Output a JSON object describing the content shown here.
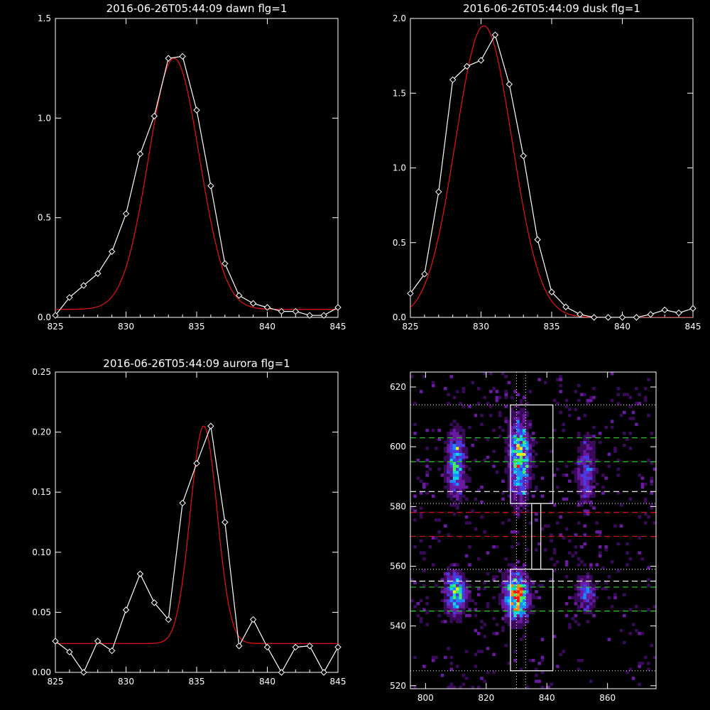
{
  "chart_data": [
    {
      "type": "line",
      "title": "2016-06-26T05:44:09 dawn flg=1",
      "xlim": [
        825,
        845
      ],
      "ylim": [
        0,
        1.5
      ],
      "xticks": [
        "825",
        "830",
        "835",
        "840",
        "845"
      ],
      "yticks": [
        "0.0",
        "0.5",
        "1.0",
        "1.5"
      ],
      "series": [
        {
          "x": [
            825,
            826,
            827,
            828,
            829,
            830,
            831,
            832,
            833,
            834,
            835,
            836,
            837,
            838,
            839,
            840,
            841,
            842,
            843,
            844,
            845
          ],
          "values": [
            0.01,
            0.1,
            0.16,
            0.22,
            0.33,
            0.52,
            0.82,
            1.01,
            1.3,
            1.31,
            1.04,
            0.66,
            0.27,
            0.11,
            0.07,
            0.05,
            0.03,
            0.03,
            0.01,
            0.01,
            0.05
          ],
          "color": "#ffffff",
          "marker": "diamond"
        },
        {
          "fit": "gaussian",
          "amplitude": 1.26,
          "center": 833.4,
          "sigma": 1.8,
          "baseline": 0.04,
          "color": "#dd1111"
        }
      ]
    },
    {
      "type": "line",
      "title": "2016-06-26T05:44:09 dusk flg=1",
      "xlim": [
        825,
        845
      ],
      "ylim": [
        0,
        2.0
      ],
      "xticks": [
        "825",
        "830",
        "835",
        "840",
        "845"
      ],
      "yticks": [
        "0.0",
        "0.5",
        "1.0",
        "1.5",
        "2.0"
      ],
      "series": [
        {
          "x": [
            825,
            826,
            827,
            828,
            829,
            830,
            831,
            832,
            833,
            834,
            835,
            836,
            837,
            838,
            839,
            840,
            841,
            842,
            843,
            844,
            845
          ],
          "values": [
            0.16,
            0.29,
            0.84,
            1.59,
            1.68,
            1.72,
            1.89,
            1.56,
            1.08,
            0.52,
            0.17,
            0.07,
            0.02,
            0.0,
            0.0,
            0.0,
            0.0,
            0.02,
            0.05,
            0.03,
            0.06
          ],
          "color": "#ffffff",
          "marker": "diamond"
        },
        {
          "fit": "gaussian",
          "amplitude": 1.95,
          "center": 830.2,
          "sigma": 2.0,
          "baseline": 0.0,
          "color": "#dd1111"
        }
      ]
    },
    {
      "type": "line",
      "title": "2016-06-26T05:44:09 aurora flg=1",
      "xlim": [
        825,
        845
      ],
      "ylim": [
        0,
        0.25
      ],
      "xticks": [
        "825",
        "830",
        "835",
        "840",
        "845"
      ],
      "yticks": [
        "0.00",
        "0.05",
        "0.10",
        "0.15",
        "0.20",
        "0.25"
      ],
      "series": [
        {
          "x": [
            825,
            826,
            827,
            828,
            829,
            830,
            831,
            832,
            833,
            834,
            835,
            836,
            837,
            838,
            839,
            840,
            841,
            842,
            843,
            844,
            845
          ],
          "values": [
            0.026,
            0.017,
            0.0,
            0.026,
            0.018,
            0.052,
            0.082,
            0.058,
            0.044,
            0.141,
            0.174,
            0.205,
            0.125,
            0.022,
            0.044,
            0.021,
            0.0,
            0.021,
            0.022,
            0.0,
            0.021
          ],
          "color": "#ffffff",
          "marker": "diamond"
        },
        {
          "fit": "gaussian",
          "amplitude": 0.181,
          "center": 835.5,
          "sigma": 0.95,
          "baseline": 0.024,
          "color": "#dd1111"
        }
      ]
    },
    {
      "type": "heatmap",
      "xlim": [
        795,
        876
      ],
      "ylim": [
        519,
        625
      ],
      "xticks": [
        "800",
        "820",
        "840",
        "860"
      ],
      "yticks": [
        "520",
        "540",
        "560",
        "580",
        "600",
        "620"
      ],
      "clusters": [
        {
          "x": 810,
          "y": 594,
          "sx": 2.0,
          "sy": 7.0,
          "peak": 0.55
        },
        {
          "x": 831,
          "y": 596,
          "sx": 2.2,
          "sy": 8.5,
          "peak": 0.75
        },
        {
          "x": 853,
          "y": 592,
          "sx": 2.0,
          "sy": 7.0,
          "peak": 0.35
        },
        {
          "x": 810,
          "y": 551,
          "sx": 2.2,
          "sy": 4.5,
          "peak": 0.65
        },
        {
          "x": 830,
          "y": 550,
          "sx": 2.5,
          "sy": 5.0,
          "peak": 1.0
        },
        {
          "x": 853,
          "y": 551,
          "sx": 2.0,
          "sy": 4.0,
          "peak": 0.4
        }
      ],
      "colorscale": [
        "#000000",
        "#3a0a5a",
        "#6a1aa0",
        "#4a3ae0",
        "#1a8aff",
        "#10d8e0",
        "#40f060",
        "#e0f020",
        "#ff8a10",
        "#ff1010"
      ],
      "boxes": [
        {
          "x0": 828,
          "x1": 842,
          "y0": 581,
          "y1": 614
        },
        {
          "x0": 828,
          "x1": 842,
          "y0": 525,
          "y1": 559
        },
        {
          "x0": 835,
          "x1": 838,
          "y0": 559,
          "y1": 581
        }
      ],
      "vlines_dotted": [
        830,
        833
      ],
      "hlines_dotted": [
        614,
        581,
        559,
        525
      ],
      "hlines_green": [
        603,
        595,
        553,
        545
      ],
      "hlines_white": [
        585,
        555
      ],
      "hlines_red": [
        578,
        570
      ]
    }
  ]
}
